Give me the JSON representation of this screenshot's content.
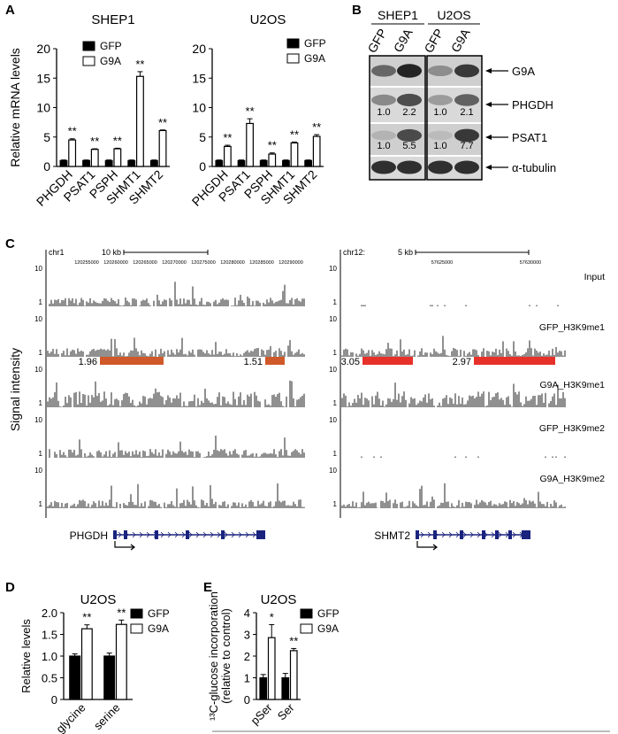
{
  "panel_labels": [
    "A",
    "B",
    "C",
    "D",
    "E"
  ],
  "chart_data": [
    {
      "type": "bar",
      "title": "SHEP1",
      "y_label": "Relative mRNA levels",
      "categories": [
        "PHGDH",
        "PSAT1",
        "PSPH",
        "SHMT1",
        "SHMT2"
      ],
      "series": [
        {
          "name": "GFP",
          "color": "#000000",
          "values": [
            1,
            1,
            1,
            1,
            1
          ],
          "errors": [
            0.1,
            0.1,
            0.1,
            0.1,
            0.1
          ]
        },
        {
          "name": "G9A",
          "color": "#ffffff",
          "values": [
            4.5,
            2.9,
            3.0,
            15.3,
            6.1
          ],
          "errors": [
            0.2,
            0.1,
            0.1,
            0.8,
            0.1
          ]
        }
      ],
      "annotations": [
        "**",
        "**",
        "**",
        "**",
        "**"
      ],
      "ylim": [
        0,
        20
      ],
      "yticks": [
        0,
        5,
        10,
        15,
        20
      ]
    },
    {
      "type": "bar",
      "title": "U2OS",
      "categories": [
        "PHGDH",
        "PSAT1",
        "PSPH",
        "SHMT1",
        "SHMT2"
      ],
      "series": [
        {
          "name": "GFP",
          "color": "#000000",
          "values": [
            1,
            1,
            1,
            1,
            1
          ],
          "errors": [
            0.1,
            0.1,
            0.1,
            0.1,
            0.1
          ]
        },
        {
          "name": "G9A",
          "color": "#ffffff",
          "values": [
            3.4,
            7.3,
            2.1,
            4.0,
            5.1
          ],
          "errors": [
            0.2,
            0.8,
            0.2,
            0.15,
            0.3
          ]
        }
      ],
      "annotations": [
        "**",
        "**",
        "**",
        "**",
        "**"
      ],
      "ylim": [
        0,
        20
      ],
      "yticks": [
        0,
        5,
        10,
        15,
        20
      ]
    },
    {
      "type": "bar",
      "title": "U2OS",
      "y_label": "Relative levels",
      "categories": [
        "glycine",
        "serine"
      ],
      "series": [
        {
          "name": "GFP",
          "color": "#000000",
          "values": [
            1.0,
            1.0
          ],
          "errors": [
            0.05,
            0.07
          ]
        },
        {
          "name": "G9A",
          "color": "#ffffff",
          "values": [
            1.63,
            1.73
          ],
          "errors": [
            0.09,
            0.1
          ]
        }
      ],
      "annotations": [
        "**",
        "**"
      ],
      "ylim": [
        0,
        2
      ],
      "yticks": [
        0,
        0.5,
        {
          "value": 1,
          "label": "1.0"
        },
        1.5,
        {
          "value": 2,
          "label": "2.0"
        }
      ]
    },
    {
      "type": "bar",
      "title": "U2OS",
      "y_label": [
        "¹³C-glucose incorporation",
        "(relative to control)"
      ],
      "categories": [
        "pSer",
        "Ser"
      ],
      "series": [
        {
          "name": "GFP",
          "color": "#000000",
          "values": [
            1.0,
            1.0
          ],
          "errors": [
            0.15,
            0.2
          ]
        },
        {
          "name": "G9A",
          "color": "#ffffff",
          "values": [
            2.85,
            2.25
          ],
          "errors": [
            0.6,
            0.1
          ]
        }
      ],
      "annotations": [
        "*",
        "**"
      ],
      "ylim": [
        0,
        4
      ],
      "yticks": [
        0,
        1,
        2,
        3,
        4
      ]
    }
  ],
  "blot": {
    "groups": [
      {
        "name": "SHEP1",
        "lanes": [
          "GFP",
          "G9A"
        ]
      },
      {
        "name": "U2OS",
        "lanes": [
          "GFP",
          "G9A"
        ]
      }
    ],
    "proteins": [
      "G9A",
      "PHGDH",
      "PSAT1",
      "α-tubulin"
    ],
    "quant_rows": [
      [
        "1.0",
        "2.2",
        "1.0",
        "2.1"
      ],
      [
        "1.0",
        "5.5",
        "1.0",
        "7.7"
      ]
    ]
  },
  "tracks": {
    "y_label": "Signal intensity",
    "axis_top": "10",
    "axis_bottom": "1",
    "names": [
      "Input",
      "GFP_H3K9me1",
      "G9A_H3K9me1",
      "GFP_H3K9me2",
      "G9A_H3K9me2"
    ],
    "left": {
      "chrom": "chr1",
      "scale": "10 kb",
      "coords": [
        "120255000",
        "120260000",
        "120265000",
        "120270000",
        "120275000",
        "120280000",
        "120285000",
        "120290000"
      ],
      "peaks": [
        "1.96",
        "1.51"
      ],
      "gene": "PHGDH"
    },
    "right": {
      "chrom": "chr12:",
      "scale": "5 kb",
      "coords": [
        "57625000",
        "57630000"
      ],
      "peaks": [
        "3.05",
        "2.97"
      ],
      "gene": "SHMT2"
    }
  }
}
